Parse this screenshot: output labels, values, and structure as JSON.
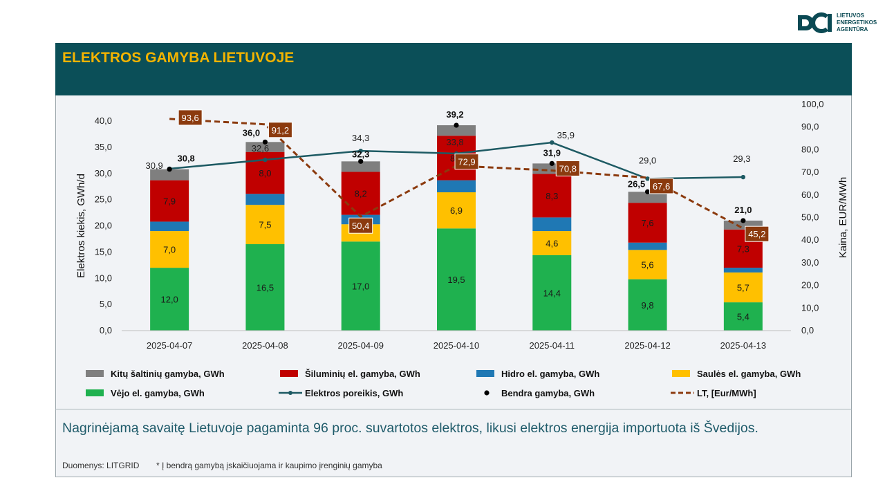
{
  "header": {
    "title": "ELEKTROS GAMYBA LIETUVOJE"
  },
  "logo": {
    "org_name": "LIETUVOS\nENERGETIKOS\nAGENTŪRA"
  },
  "summary": "Nagrinėjamą savaitę Lietuvoje pagaminta 96 proc. suvartotos elektros, likusi elektros energija importuota iš Švedijos.",
  "footer": {
    "source": "Duomenys: LITGRID",
    "note": "* Į bendrą gamybą įskaičiuojama ir kaupimo įrenginių gamyba"
  },
  "colors": {
    "header_bg": "#0b4f58",
    "title": "#f4b400",
    "wind": "#1fb14f",
    "solar": "#ffc000",
    "hydro": "#1f78b4",
    "thermal": "#c00000",
    "other": "#7f7f7f",
    "demand": "#1d5a63",
    "price": "#8b3a0e"
  },
  "chart_data": {
    "type": "bar",
    "categories": [
      "2025-04-07",
      "2025-04-08",
      "2025-04-09",
      "2025-04-10",
      "2025-04-11",
      "2025-04-12",
      "2025-04-13"
    ],
    "ylabel": "Elektros kiekis, GWh/d",
    "y2label": "Kaina, EUR/MWh",
    "ylim": [
      0,
      40
    ],
    "y2lim": [
      0,
      100
    ],
    "yticks": [
      "0,0",
      "5,0",
      "10,0",
      "15,0",
      "20,0",
      "25,0",
      "30,0",
      "35,0",
      "40,0"
    ],
    "y2ticks": [
      "0,0",
      "10,0",
      "20,0",
      "30,0",
      "40,0",
      "50,0",
      "60,0",
      "70,0",
      "80,0",
      "90,0",
      "100,0"
    ],
    "stacked_series": [
      {
        "name": "Vėjo el. gamyba, GWh",
        "values": [
          12.0,
          16.5,
          17.0,
          19.5,
          14.4,
          9.8,
          5.4
        ],
        "labels": [
          "12,0",
          "16,5",
          "17,0",
          "19,5",
          "14,4",
          "9,8",
          "5,4"
        ]
      },
      {
        "name": "Saulės el. gamyba, GWh",
        "values": [
          7.0,
          7.5,
          3.3,
          6.9,
          4.6,
          5.6,
          5.7
        ],
        "labels": [
          "7,0",
          "7,5",
          "",
          "6,9",
          "4,6",
          "5,6",
          "5,7"
        ]
      },
      {
        "name": "Hidro el. gamyba, GWh",
        "values": [
          1.8,
          2.1,
          1.8,
          2.3,
          2.6,
          1.4,
          0.9
        ],
        "labels": [
          "",
          "",
          "",
          "",
          "",
          "",
          ""
        ]
      },
      {
        "name": "Šiluminių el. gamyba, GWh",
        "values": [
          7.9,
          8.0,
          8.2,
          8.5,
          8.3,
          7.6,
          7.3
        ],
        "labels": [
          "7,9",
          "8,0",
          "8,2",
          "8,5",
          "8,3",
          "7,6",
          "7,3"
        ]
      },
      {
        "name": "Kitų šaltinių gamyba,  GWh",
        "values": [
          2.1,
          1.9,
          2.0,
          2.0,
          2.0,
          2.1,
          1.7
        ],
        "labels": [
          "",
          "",
          "",
          "",
          "",
          "",
          ""
        ]
      }
    ],
    "total_series": {
      "name": "Bendra gamyba, GWh",
      "values": [
        30.8,
        36.0,
        32.3,
        39.2,
        31.9,
        26.5,
        21.0
      ],
      "labels": [
        "30,8",
        "36,0",
        "32,3",
        "39,2",
        "31,9",
        "26,5",
        "21,0"
      ]
    },
    "demand_series": {
      "name": "Elektros poreikis, GWh",
      "values": [
        30.9,
        32.6,
        34.3,
        33.8,
        35.9,
        29.0,
        29.3
      ],
      "labels": [
        "30,9",
        "32,6",
        "34,3",
        "33,8",
        "35,9",
        "29,0",
        "29,3"
      ]
    },
    "price_series": {
      "name": "LT, [Eur/MWh]",
      "values": [
        93.6,
        91.2,
        50.4,
        72.9,
        70.8,
        67.6,
        45.2
      ],
      "labels": [
        "93,6",
        "91,2",
        "50,4",
        "72,9",
        "70,8",
        "67,6",
        "45,2"
      ]
    },
    "legend": [
      {
        "key": "other",
        "text": "Kitų šaltinių gamyba,  GWh",
        "kind": "box"
      },
      {
        "key": "thermal",
        "text": "Šiluminių el. gamyba, GWh",
        "kind": "box"
      },
      {
        "key": "hydro",
        "text": "Hidro el. gamyba, GWh",
        "kind": "box"
      },
      {
        "key": "solar",
        "text": "Saulės el. gamyba, GWh",
        "kind": "box"
      },
      {
        "key": "wind",
        "text": "Vėjo el. gamyba, GWh",
        "kind": "box"
      },
      {
        "key": "demand",
        "text": "Elektros poreikis, GWh",
        "kind": "line"
      },
      {
        "key": "total",
        "text": "Bendra gamyba, GWh",
        "kind": "dot"
      },
      {
        "key": "price",
        "text": "LT, [Eur/MWh]",
        "kind": "dash"
      }
    ]
  }
}
